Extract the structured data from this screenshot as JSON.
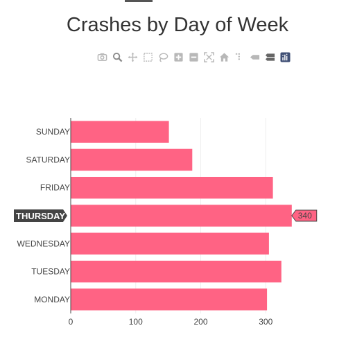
{
  "chart_data": {
    "type": "bar",
    "orientation": "horizontal",
    "title": "Crashes by Day of Week",
    "categories": [
      "MONDAY",
      "TUESDAY",
      "WEDNESDAY",
      "THURSDAY",
      "FRIDAY",
      "SATURDAY",
      "SUNDAY"
    ],
    "values": [
      302,
      324,
      305,
      340,
      311,
      187,
      151
    ],
    "xlim": [
      0,
      380
    ],
    "xticks": [
      0,
      100,
      200,
      300
    ],
    "xlabel": "",
    "ylabel": "",
    "bar_color": "#ff6384",
    "grid": true,
    "hover": {
      "category": "THURSDAY",
      "value": "340"
    }
  },
  "modebar": [
    {
      "name": "camera-icon",
      "glyph": "camera"
    },
    {
      "name": "zoom-icon",
      "glyph": "zoom"
    },
    {
      "name": "pan-icon",
      "glyph": "pan"
    },
    {
      "name": "box-select-icon",
      "glyph": "box"
    },
    {
      "name": "lasso-select-icon",
      "glyph": "lasso"
    },
    {
      "name": "zoom-in-icon",
      "glyph": "plus"
    },
    {
      "name": "zoom-out-icon",
      "glyph": "minus"
    },
    {
      "name": "autoscale-icon",
      "glyph": "autoscale"
    },
    {
      "name": "reset-axes-icon",
      "glyph": "home"
    },
    {
      "name": "spike-lines-icon",
      "glyph": "spike"
    },
    {
      "name": "hover-closest-icon",
      "glyph": "hover1"
    },
    {
      "name": "hover-compare-icon",
      "glyph": "hover2"
    },
    {
      "name": "plotly-logo-icon",
      "glyph": "logo"
    }
  ],
  "colors": {
    "accent": "#ff6384",
    "hover_bg": "#444444",
    "modebar_icon": "#b8b8b8",
    "logo": "#3f4f75"
  }
}
